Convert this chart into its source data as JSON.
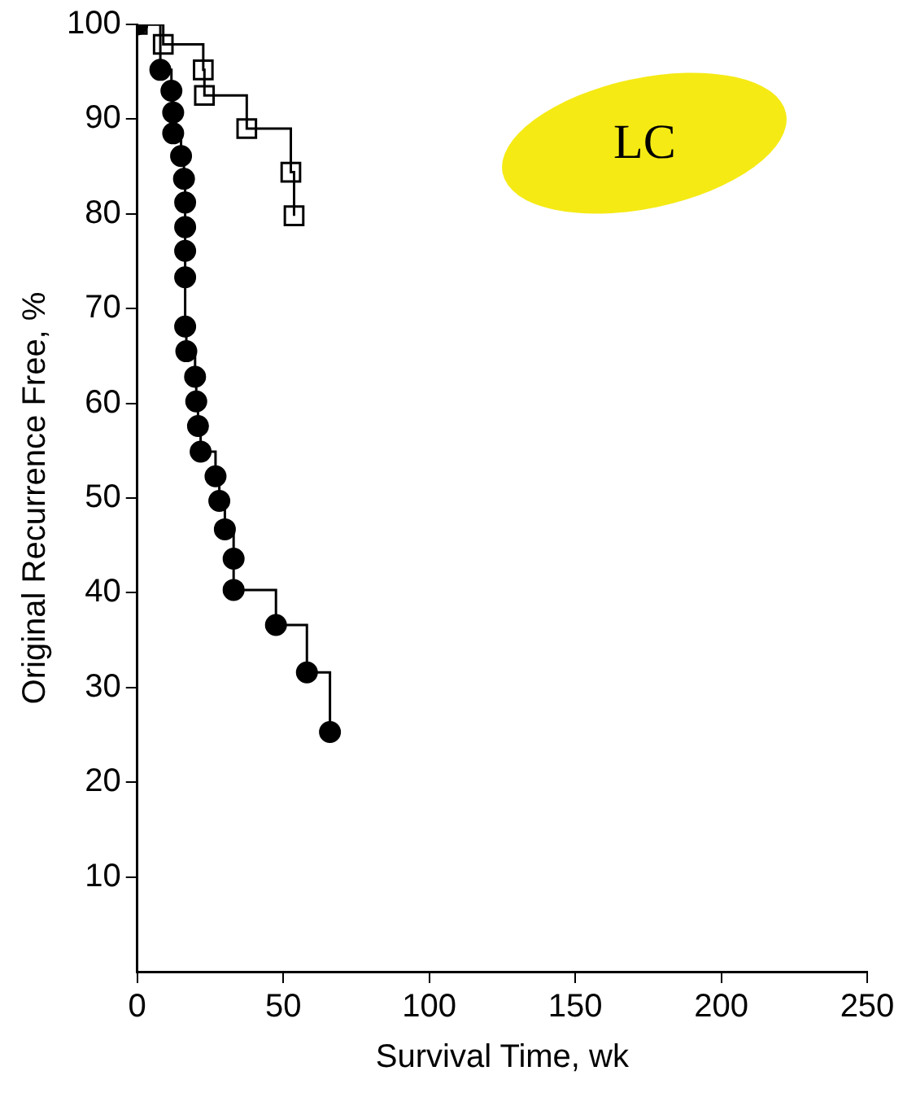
{
  "chart_data": {
    "type": "step",
    "xlabel": "Survival Time, wk",
    "ylabel": "Original Recurrence Free, %",
    "xlim": [
      0,
      250
    ],
    "xticks": [
      0,
      50,
      100,
      150,
      200,
      250
    ],
    "ylim": [
      0,
      100
    ],
    "yticks": [
      10,
      20,
      30,
      40,
      50,
      60,
      70,
      80,
      90,
      100
    ],
    "annotations": [
      "LC"
    ],
    "series": [
      {
        "color": "#000000",
        "marker": "circle",
        "x": [
          0,
          7.9,
          11.7,
          12.3,
          12.3,
          15,
          16,
          16.4,
          16.4,
          16.4,
          16.4,
          16.4,
          16.8,
          19.8,
          20.2,
          20.8,
          21.7,
          26.8,
          28.1,
          30,
          33,
          33,
          47.5,
          58.1,
          66
        ],
        "values": [
          100,
          95.2,
          93,
          90.7,
          88.5,
          86.1,
          83.7,
          81.2,
          78.6,
          76.1,
          73.3,
          68.1,
          65.5,
          62.8,
          60.2,
          57.6,
          54.9,
          52.3,
          49.7,
          46.7,
          43.6,
          40.3,
          36.6,
          31.6,
          25.3
        ]
      },
      {
        "color": "#000000",
        "marker": "square",
        "x": [
          0,
          8.9,
          22.6,
          23,
          37.5,
          52.6,
          53.7
        ],
        "values": [
          100,
          97.9,
          95.2,
          92.5,
          89,
          84.4,
          79.8
        ]
      }
    ]
  }
}
